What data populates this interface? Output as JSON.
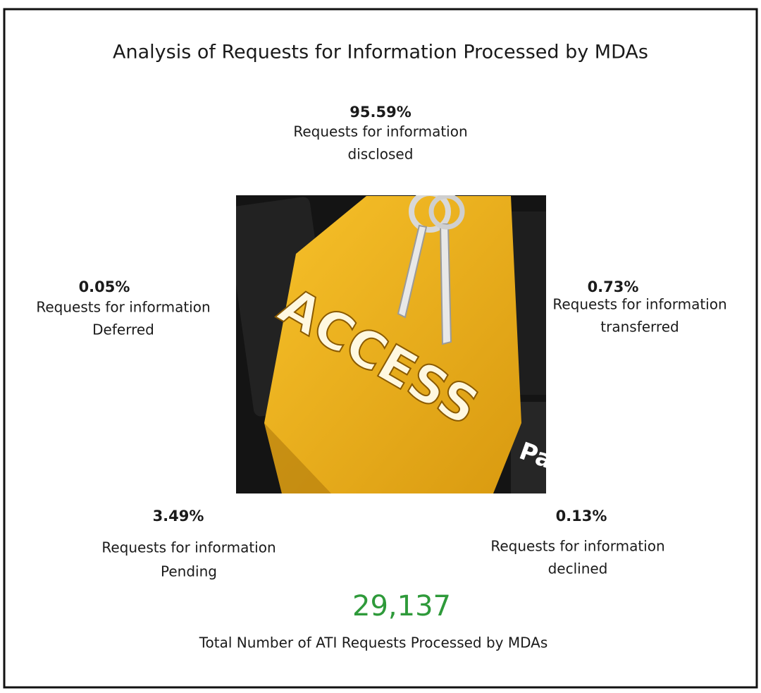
{
  "header": {
    "title": "Analysis of Requests for Information Processed by MDAs"
  },
  "stats": [
    {
      "value": "95.59%",
      "lines": [
        "Requests for information",
        "disclosed"
      ]
    },
    {
      "value": "0.05%",
      "lines": [
        "Requests for information",
        "Deferred"
      ]
    },
    {
      "value": "0.73%",
      "lines": [
        "Requests for information",
        "transferred"
      ]
    },
    {
      "value": "3.49%",
      "lines": [
        "Requests for information",
        "Pending"
      ]
    },
    {
      "value": "0.13%",
      "lines": [
        "Requests for information",
        "declined"
      ]
    }
  ],
  "image": {
    "key_text": "ACCESS",
    "side_key_text": "Pa"
  },
  "total": {
    "value": "29,137",
    "caption": "Total Number of ATI Requests Processed by MDAs"
  }
}
